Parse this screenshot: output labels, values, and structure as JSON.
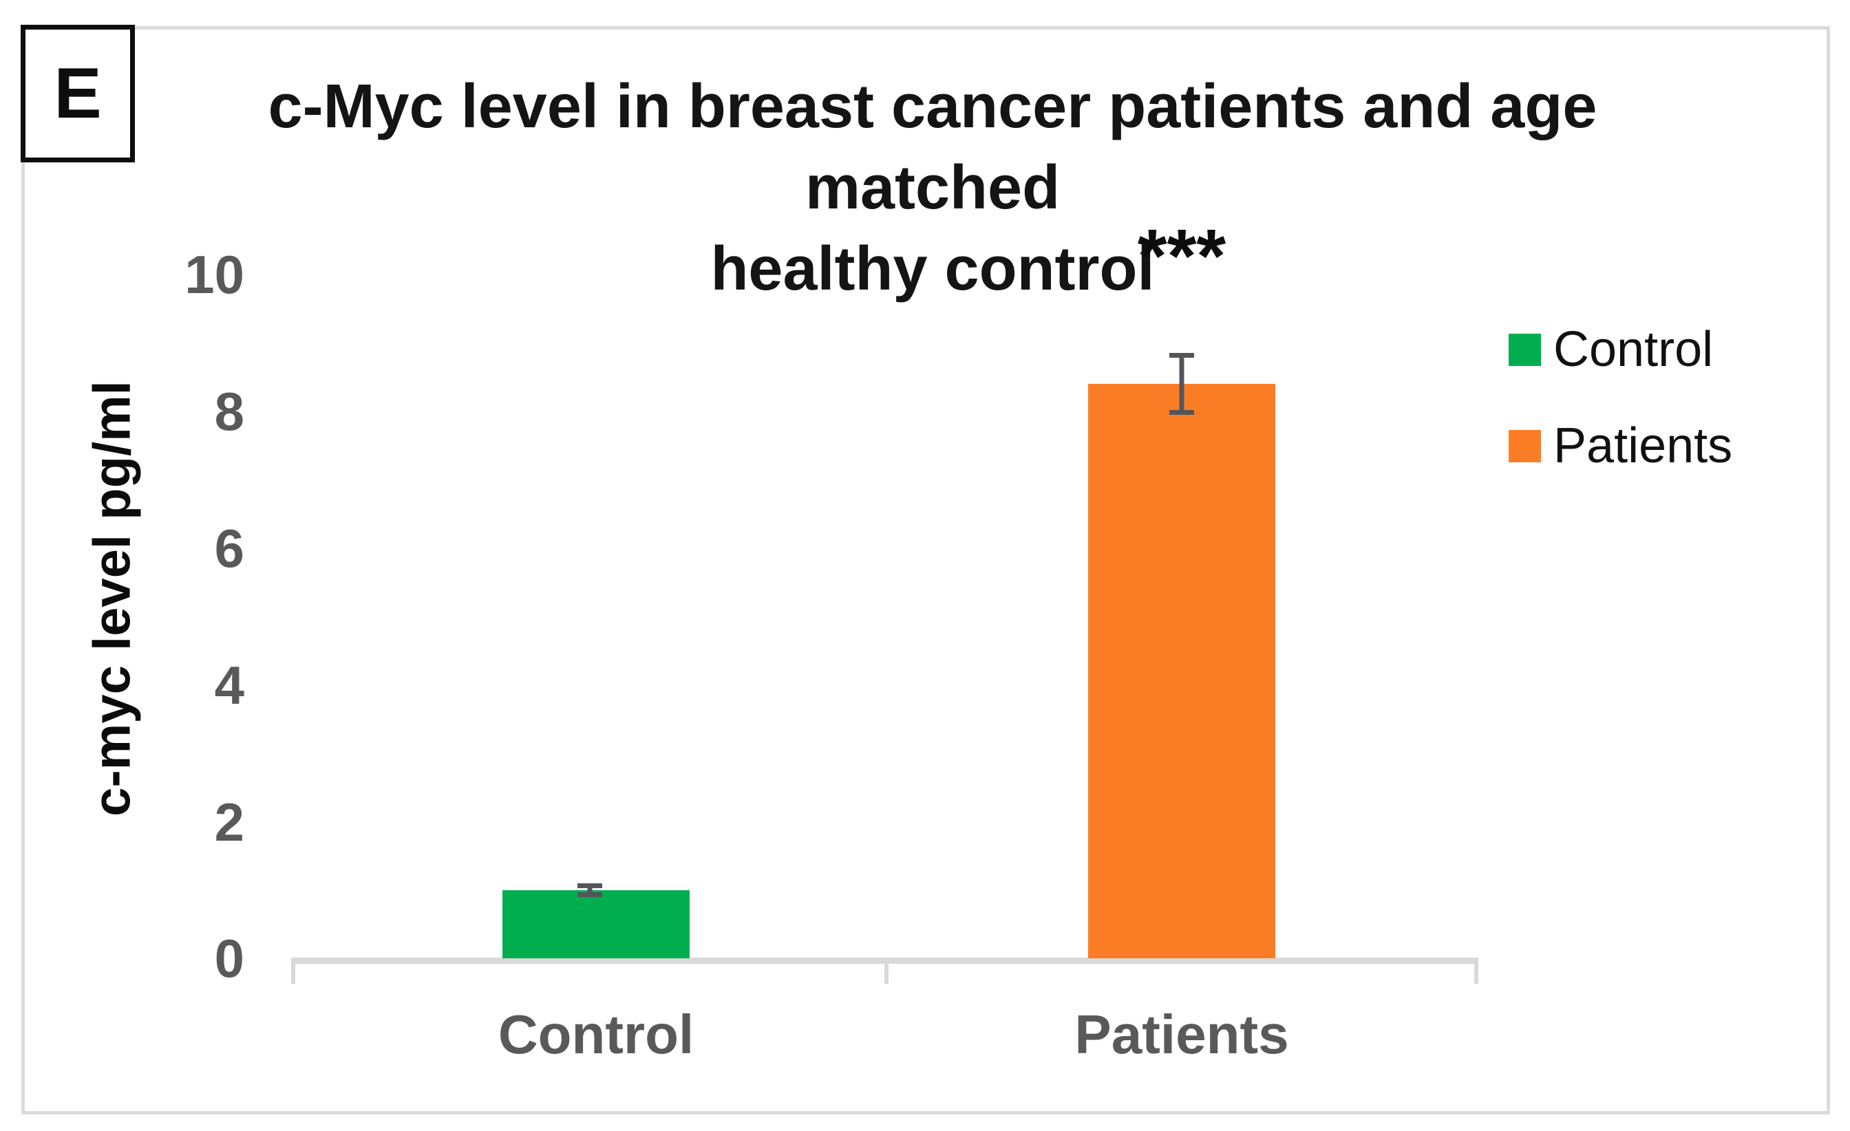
{
  "figure": {
    "panel_label": "E"
  },
  "title": {
    "line1": "c-Myc level in breast cancer patients and age matched",
    "line2": "healthy control"
  },
  "axes": {
    "y": {
      "title": "c-myc level pg/ml",
      "ticks": [
        "10",
        "8",
        "6",
        "4",
        "2",
        "0"
      ],
      "range": [
        0,
        10
      ]
    },
    "x": {
      "categories": [
        "Control",
        "Patients"
      ]
    }
  },
  "legend": {
    "position": "right",
    "items": [
      {
        "label": "Control",
        "color": "#00ae4f"
      },
      {
        "label": "Patients",
        "color": "#fa7d26"
      }
    ]
  },
  "annotations": {
    "significance": "***",
    "significance_on": "Patients"
  },
  "colors": {
    "control_bar": "#00ae4f",
    "patients_bar": "#fa7d26",
    "axis_line": "#d9d9d9",
    "tick_text": "#595959",
    "error_bar": "#54555a",
    "border": "#dbdbdb",
    "title_text": "#141414"
  },
  "chart_data": {
    "type": "bar",
    "title": "c-Myc level in breast cancer patients and age matched healthy control",
    "categories": [
      "Control",
      "Patients"
    ],
    "values": [
      1.0,
      8.4
    ],
    "error_bars": [
      0.1,
      0.45
    ],
    "colors": [
      "#00ae4f",
      "#fa7d26"
    ],
    "xlabel": "",
    "ylabel": "c-myc level pg/ml",
    "ylim": [
      0,
      10
    ],
    "ytick_step": 2,
    "grid": false,
    "legend_position": "right",
    "significance": {
      "category": "Patients",
      "label": "***"
    }
  }
}
